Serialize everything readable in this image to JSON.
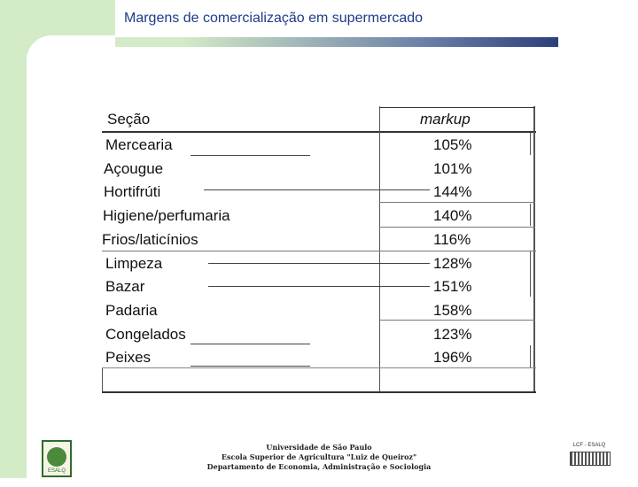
{
  "slide": {
    "title": "Margens de comercialização em supermercado"
  },
  "table": {
    "headers": {
      "section": "Seção",
      "markup": "markup"
    },
    "rows": [
      {
        "section": "Mercearia",
        "markup": "105%"
      },
      {
        "section": "Açougue",
        "markup": "101%"
      },
      {
        "section": "Hortifrúti",
        "markup": "144%"
      },
      {
        "section": "Higiene/perfumaria",
        "markup": "140%"
      },
      {
        "section": "Frios/laticínios",
        "markup": "116%"
      },
      {
        "section": "Limpeza",
        "markup": "128%"
      },
      {
        "section": "Bazar",
        "markup": "151%"
      },
      {
        "section": "Padaria",
        "markup": "158%"
      },
      {
        "section": "Congelados",
        "markup": "123%"
      },
      {
        "section": "Peixes",
        "markup": "196%"
      }
    ]
  },
  "footer": {
    "line1": "Universidade de São Paulo",
    "line2": "Escola Superior de Agricultura \"Luiz de Queiroz\"",
    "line3": "Departamento de Economia, Administração e Sociologia",
    "logo_left_label": "ESALQ",
    "logo_right_label": "LCF - ESALQ"
  },
  "colors": {
    "title": "#1f3b8a",
    "accent_green": "#d4ebc7",
    "rule_dark": "#2d3f7a"
  }
}
